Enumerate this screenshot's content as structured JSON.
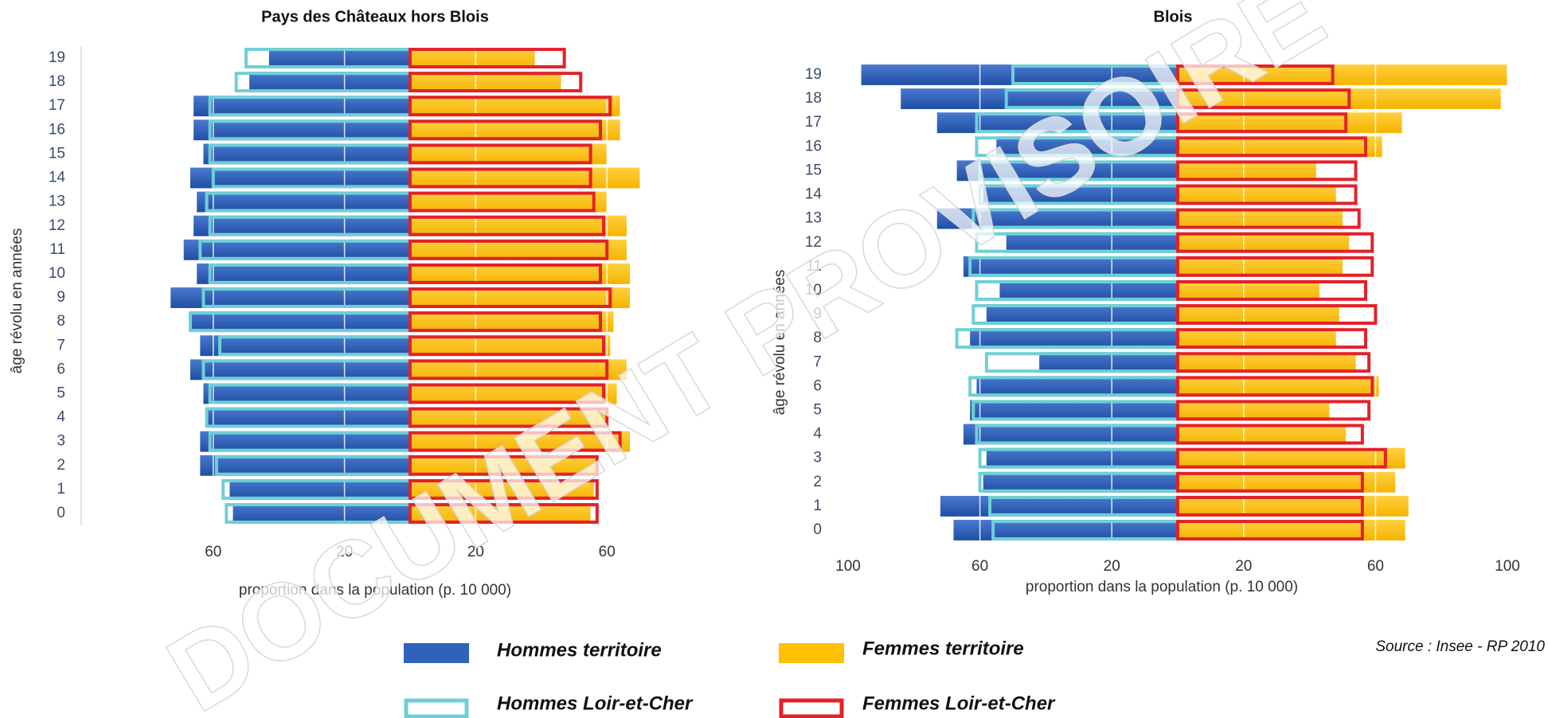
{
  "chart_data": [
    {
      "type": "pyramid",
      "title": "Pays des Châteaux hors Blois",
      "y_label": "âge révolu en années",
      "x_label": "proportion dans la population (p. 10 000)",
      "categories": [
        "0",
        "1",
        "2",
        "3",
        "4",
        "5",
        "6",
        "7",
        "8",
        "9",
        "10",
        "11",
        "12",
        "13",
        "14",
        "15",
        "16",
        "17",
        "18",
        "19"
      ],
      "xlim": [
        -100,
        100
      ],
      "xticks": [
        {
          "value": -60,
          "label": "60"
        },
        {
          "value": -20,
          "label": "20"
        },
        {
          "value": 20,
          "label": "20"
        },
        {
          "value": 60,
          "label": "60"
        }
      ],
      "series": [
        {
          "values": [
            54,
            55,
            64,
            64,
            62,
            63,
            67,
            64,
            67,
            73,
            65,
            69,
            66,
            65,
            67,
            63,
            66,
            66,
            49,
            43
          ]
        },
        {
          "values": [
            55,
            56,
            57,
            67,
            60,
            63,
            66,
            61,
            62,
            67,
            67,
            66,
            66,
            60,
            70,
            60,
            64,
            64,
            46,
            38
          ]
        },
        {
          "values": [
            56,
            57,
            59,
            61,
            62,
            61,
            63,
            58,
            67,
            63,
            61,
            64,
            61,
            62,
            60,
            61,
            61,
            61,
            53,
            50
          ]
        },
        {
          "values": [
            57,
            57,
            57,
            64,
            60,
            59,
            60,
            59,
            58,
            61,
            58,
            60,
            59,
            56,
            55,
            55,
            58,
            61,
            52,
            47
          ]
        }
      ]
    },
    {
      "type": "pyramid",
      "title": "Blois",
      "y_label": "âge révolu en années",
      "x_label": "proportion dans la population (p. 10 000)",
      "categories": [
        "0",
        "1",
        "2",
        "3",
        "4",
        "5",
        "6",
        "7",
        "8",
        "9",
        "10",
        "11",
        "12",
        "13",
        "14",
        "15",
        "16",
        "17",
        "18",
        "19"
      ],
      "xlim": [
        -100,
        100
      ],
      "xticks": [
        {
          "value": -100,
          "label": "100"
        },
        {
          "value": -60,
          "label": "60"
        },
        {
          "value": -20,
          "label": "20"
        },
        {
          "value": 20,
          "label": "20"
        },
        {
          "value": 60,
          "label": "60"
        },
        {
          "value": 100,
          "label": "100"
        }
      ],
      "series": [
        {
          "values": [
            68,
            72,
            59,
            58,
            65,
            63,
            61,
            42,
            63,
            58,
            54,
            65,
            52,
            73,
            59,
            67,
            55,
            73,
            84,
            96
          ]
        },
        {
          "values": [
            69,
            70,
            66,
            69,
            51,
            46,
            61,
            54,
            48,
            49,
            43,
            50,
            52,
            50,
            48,
            42,
            62,
            68,
            98,
            100
          ]
        },
        {
          "values": [
            56,
            57,
            60,
            60,
            61,
            62,
            63,
            58,
            67,
            62,
            61,
            63,
            61,
            62,
            60,
            60,
            61,
            61,
            52,
            50
          ]
        },
        {
          "values": [
            56,
            56,
            56,
            63,
            56,
            58,
            59,
            58,
            57,
            60,
            57,
            59,
            59,
            55,
            54,
            54,
            57,
            51,
            52,
            47
          ]
        }
      ]
    }
  ],
  "legend": [
    {
      "name": "Hommes territoire",
      "color": "#2f62b8",
      "style": "fill",
      "side": "left"
    },
    {
      "name": "Femmes territoire",
      "color": "#ffc000",
      "style": "fill",
      "side": "right"
    },
    {
      "name": "Hommes Loir-et-Cher",
      "color": "#6fcfd6",
      "style": "outline",
      "side": "left"
    },
    {
      "name": "Femmes Loir-et-Cher",
      "color": "#e3212a",
      "style": "outline",
      "side": "right"
    }
  ],
  "source": "Source : Insee -  RP 2010",
  "watermark": "DOCUMENT PROVISOIRE"
}
